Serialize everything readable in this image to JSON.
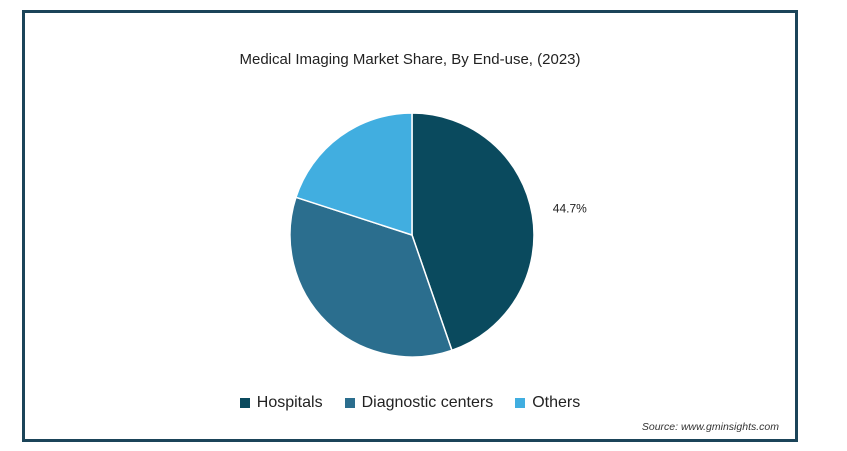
{
  "chart_data": {
    "type": "pie",
    "title": "Medical Imaging Market Share, By End-use, (2023)",
    "categories": [
      "Hospitals",
      "Diagnostic centers",
      "Others"
    ],
    "values": [
      44.7,
      35.3,
      20.0
    ],
    "unit": "%",
    "data_labels": [
      "44.7%",
      "",
      ""
    ],
    "colors": [
      "#0a4a5e",
      "#2b6e8e",
      "#41aee0"
    ],
    "legend_position": "bottom-center",
    "start_angle": "12 o'clock",
    "direction": "clockwise"
  },
  "source": "Source: www.gminsights.com"
}
